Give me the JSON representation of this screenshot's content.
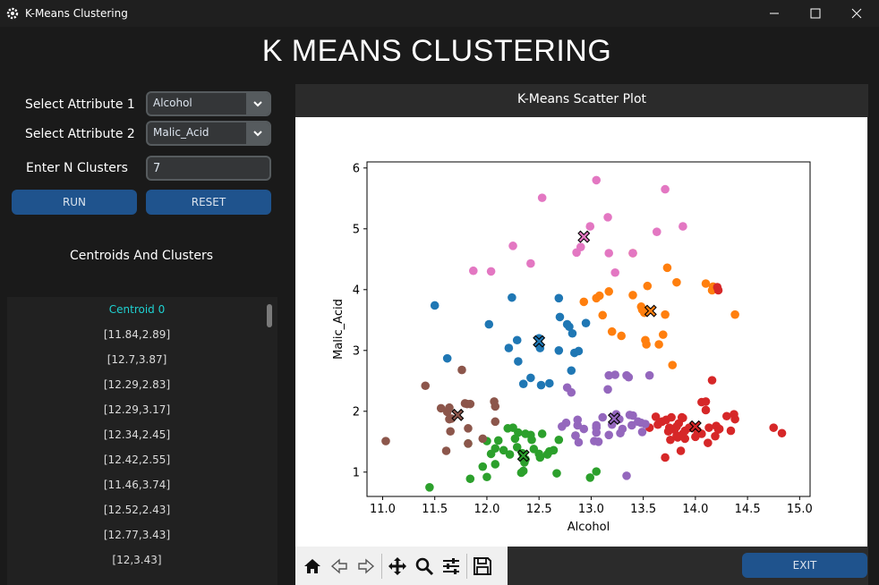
{
  "window": {
    "title": "K-Means Clustering",
    "icon": "gear-icon"
  },
  "heading": "K MEANS CLUSTERING",
  "controls": {
    "attr1_label": "Select Attribute 1",
    "attr1_value": "Alcohol",
    "attr2_label": "Select Attribute 2",
    "attr2_value": "Malic_Acid",
    "nclusters_label": "Enter N Clusters",
    "nclusters_value": "7",
    "run_label": "RUN",
    "reset_label": "RESET",
    "exit_label": "EXIT"
  },
  "centroids": {
    "title": "Centroids And Clusters",
    "items": [
      "Centroid 0",
      "[11.84,2.89]",
      "[12.7,3.87]",
      "[12.29,2.83]",
      "[12.29,3.17]",
      "[12.34,2.45]",
      "[12.42,2.55]",
      "[11.46,3.74]",
      "[12.52,2.43]",
      "[12.77,3.43]",
      "[12,3.43]"
    ]
  },
  "toolbar": {
    "icons": [
      "home-icon",
      "back-arrow-icon",
      "forward-arrow-icon",
      "pan-icon",
      "zoom-icon",
      "configure-subplots-icon",
      "save-icon"
    ]
  },
  "chart_data": {
    "type": "scatter",
    "title": "K-Means Scatter Plot",
    "xlabel": "Alcohol",
    "ylabel": "Malic_Acid",
    "xlim": [
      10.85,
      15.1
    ],
    "ylim": [
      0.6,
      6.1
    ],
    "xticks": [
      "11.0",
      "11.5",
      "12.0",
      "12.5",
      "13.0",
      "13.5",
      "14.0",
      "14.5",
      "15.0"
    ],
    "yticks": [
      "1",
      "2",
      "3",
      "4",
      "5",
      "6"
    ],
    "grid": false,
    "clusters": [
      {
        "color": "#1f77b4",
        "centroid": [
          12.5,
          3.15
        ],
        "points": [
          [
            11.5,
            3.74
          ],
          [
            11.62,
            2.87
          ],
          [
            12.02,
            3.43
          ],
          [
            12.21,
            3.04
          ],
          [
            12.24,
            3.87
          ],
          [
            12.29,
            3.17
          ],
          [
            12.3,
            2.82
          ],
          [
            12.35,
            2.45
          ],
          [
            12.42,
            2.55
          ],
          [
            12.51,
            3.04
          ],
          [
            12.52,
            2.43
          ],
          [
            12.6,
            2.46
          ],
          [
            12.69,
            3.86
          ],
          [
            12.7,
            3.55
          ],
          [
            12.77,
            3.43
          ],
          [
            12.79,
            3.39
          ],
          [
            12.82,
            3.28
          ],
          [
            12.84,
            2.96
          ],
          [
            12.88,
            2.99
          ],
          [
            12.95,
            3.45
          ],
          [
            12.81,
            2.67
          ],
          [
            12.69,
            3.0
          ],
          [
            12.5,
            3.2
          ]
        ]
      },
      {
        "color": "#ff7f0e",
        "centroid": [
          13.57,
          3.65
        ],
        "points": [
          [
            12.93,
            3.8
          ],
          [
            13.05,
            3.86
          ],
          [
            13.08,
            3.9
          ],
          [
            13.17,
            3.97
          ],
          [
            13.11,
            3.58
          ],
          [
            13.2,
            3.31
          ],
          [
            13.29,
            3.24
          ],
          [
            13.4,
            3.91
          ],
          [
            13.4,
            4.6
          ],
          [
            13.48,
            3.72
          ],
          [
            13.51,
            3.62
          ],
          [
            13.52,
            3.17
          ],
          [
            13.53,
            3.1
          ],
          [
            13.54,
            4.06
          ],
          [
            13.49,
            3.67
          ],
          [
            13.65,
            3.1
          ],
          [
            13.69,
            3.26
          ],
          [
            13.71,
            3.59
          ],
          [
            13.73,
            4.36
          ],
          [
            13.78,
            2.76
          ],
          [
            13.82,
            4.12
          ],
          [
            14.1,
            4.1
          ],
          [
            14.16,
            3.99
          ],
          [
            14.17,
            4.05
          ],
          [
            14.38,
            3.59
          ]
        ]
      },
      {
        "color": "#2ca02c",
        "centroid": [
          12.35,
          1.27
        ],
        "points": [
          [
            11.45,
            0.75
          ],
          [
            11.82,
            1.47
          ],
          [
            11.84,
            0.89
          ],
          [
            11.96,
            1.09
          ],
          [
            12.0,
            0.92
          ],
          [
            12.0,
            1.51
          ],
          [
            12.04,
            1.3
          ],
          [
            12.08,
            1.13
          ],
          [
            12.08,
            1.39
          ],
          [
            12.16,
            1.36
          ],
          [
            12.2,
            1.72
          ],
          [
            12.22,
            1.29
          ],
          [
            12.25,
            1.73
          ],
          [
            12.27,
            1.55
          ],
          [
            12.29,
            1.41
          ],
          [
            12.33,
            0.99
          ],
          [
            12.34,
            1.31
          ],
          [
            12.35,
            1.02
          ],
          [
            12.36,
            1.16
          ],
          [
            12.37,
            1.21
          ],
          [
            12.37,
            1.63
          ],
          [
            12.42,
            1.61
          ],
          [
            12.45,
            1.38
          ],
          [
            12.5,
            1.3
          ],
          [
            12.51,
            1.24
          ],
          [
            12.53,
            1.63
          ],
          [
            12.6,
            1.34
          ],
          [
            12.64,
            1.36
          ],
          [
            12.67,
            0.98
          ],
          [
            12.69,
            1.53
          ],
          [
            12.58,
            1.29
          ],
          [
            12.43,
            1.53
          ],
          [
            12.3,
            1.65
          ],
          [
            12.11,
            1.52
          ],
          [
            12.99,
            0.91
          ],
          [
            13.05,
            1.01
          ],
          [
            12.85,
            1.6
          ]
        ]
      },
      {
        "color": "#d62728",
        "centroid": [
          14.0,
          1.75
        ],
        "points": [
          [
            13.64,
            1.78
          ],
          [
            13.68,
            1.83
          ],
          [
            13.72,
            1.86
          ],
          [
            13.75,
            1.73
          ],
          [
            13.76,
            1.53
          ],
          [
            13.77,
            1.9
          ],
          [
            13.8,
            1.7
          ],
          [
            13.82,
            1.75
          ],
          [
            13.83,
            1.57
          ],
          [
            13.84,
            1.8
          ],
          [
            13.86,
            1.35
          ],
          [
            13.87,
            1.9
          ],
          [
            13.88,
            1.89
          ],
          [
            13.9,
            1.68
          ],
          [
            13.94,
            1.73
          ],
          [
            14.02,
            1.68
          ],
          [
            14.06,
            1.63
          ],
          [
            14.06,
            2.15
          ],
          [
            14.1,
            2.16
          ],
          [
            14.12,
            1.48
          ],
          [
            14.13,
            1.73
          ],
          [
            14.19,
            1.59
          ],
          [
            14.2,
            1.76
          ],
          [
            14.21,
            4.04
          ],
          [
            14.22,
            1.7
          ],
          [
            14.22,
            3.99
          ],
          [
            14.3,
            1.92
          ],
          [
            14.34,
            1.68
          ],
          [
            14.37,
            1.95
          ],
          [
            14.38,
            1.87
          ],
          [
            14.75,
            1.73
          ],
          [
            14.83,
            1.64
          ],
          [
            13.71,
            1.24
          ],
          [
            14.16,
            2.51
          ],
          [
            13.74,
            1.67
          ],
          [
            14.0,
            1.58
          ],
          [
            13.56,
            1.73
          ],
          [
            14.23,
            1.71
          ],
          [
            13.62,
            1.91
          ],
          [
            13.9,
            1.55
          ],
          [
            14.1,
            2.02
          ],
          [
            13.82,
            1.6
          ],
          [
            13.88,
            1.63
          ],
          [
            14.02,
            1.67
          ],
          [
            13.95,
            1.73
          ]
        ]
      },
      {
        "color": "#9467bd",
        "centroid": [
          13.22,
          1.88
        ],
        "points": [
          [
            12.72,
            1.75
          ],
          [
            12.76,
            1.81
          ],
          [
            12.77,
            2.39
          ],
          [
            12.81,
            2.31
          ],
          [
            12.85,
            1.6
          ],
          [
            12.87,
            1.77
          ],
          [
            12.88,
            1.49
          ],
          [
            12.93,
            1.71
          ],
          [
            13.03,
            1.51
          ],
          [
            13.05,
            1.73
          ],
          [
            13.05,
            1.77
          ],
          [
            13.07,
            1.5
          ],
          [
            13.11,
            1.9
          ],
          [
            13.16,
            2.36
          ],
          [
            13.17,
            2.59
          ],
          [
            13.2,
            1.78
          ],
          [
            13.23,
            2.6
          ],
          [
            13.24,
            1.95
          ],
          [
            13.27,
            1.87
          ],
          [
            13.28,
            1.64
          ],
          [
            13.3,
            1.71
          ],
          [
            13.34,
            2.59
          ],
          [
            13.36,
            2.56
          ],
          [
            13.37,
            1.94
          ],
          [
            13.39,
            1.77
          ],
          [
            13.4,
            1.93
          ],
          [
            13.45,
            1.83
          ],
          [
            13.48,
            1.81
          ],
          [
            13.49,
            1.66
          ],
          [
            13.52,
            1.79
          ],
          [
            13.34,
            0.94
          ],
          [
            13.56,
            2.59
          ],
          [
            13.17,
            1.61
          ],
          [
            13.05,
            1.65
          ],
          [
            12.87,
            1.86
          ]
        ]
      },
      {
        "color": "#8c564b",
        "centroid": [
          11.72,
          1.94
        ],
        "points": [
          [
            11.03,
            1.51
          ],
          [
            11.41,
            2.42
          ],
          [
            11.56,
            2.05
          ],
          [
            11.61,
            1.35
          ],
          [
            11.62,
            1.99
          ],
          [
            11.64,
            2.06
          ],
          [
            11.65,
            1.67
          ],
          [
            11.66,
            1.88
          ],
          [
            11.76,
            2.68
          ],
          [
            11.79,
            2.13
          ],
          [
            11.81,
            2.12
          ],
          [
            11.82,
            1.72
          ],
          [
            11.84,
            2.12
          ],
          [
            11.82,
            1.47
          ],
          [
            11.96,
            1.55
          ],
          [
            12.08,
            1.83
          ],
          [
            12.08,
            2.08
          ],
          [
            12.07,
            2.16
          ],
          [
            11.64,
            1.87
          ]
        ]
      },
      {
        "color": "#e377c2",
        "centroid": [
          12.93,
          4.87
        ],
        "points": [
          [
            11.87,
            4.31
          ],
          [
            12.04,
            4.3
          ],
          [
            12.25,
            4.72
          ],
          [
            12.42,
            4.43
          ],
          [
            12.53,
            5.51
          ],
          [
            12.86,
            4.61
          ],
          [
            12.99,
            5.04
          ],
          [
            13.05,
            5.8
          ],
          [
            13.16,
            5.19
          ],
          [
            13.23,
            4.28
          ],
          [
            13.4,
            4.6
          ],
          [
            13.63,
            4.95
          ],
          [
            13.71,
            5.65
          ],
          [
            13.88,
            5.04
          ],
          [
            12.9,
            4.7
          ],
          [
            13.17,
            4.6
          ]
        ]
      }
    ]
  }
}
